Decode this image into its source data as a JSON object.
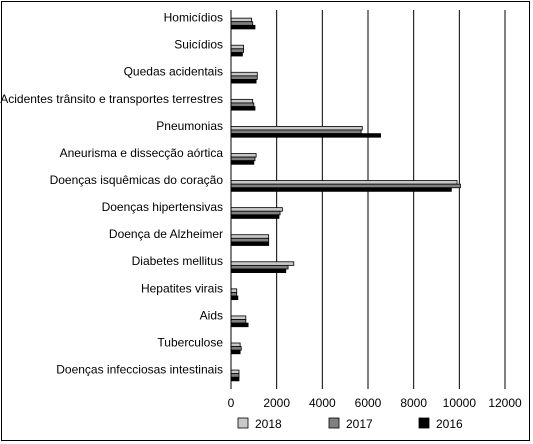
{
  "chart_data": {
    "type": "bar",
    "orientation": "horizontal",
    "categories": [
      "Homicídios",
      "Suicídios",
      "Quedas acidentais",
      "Acidentes trânsito e transportes terrestres",
      "Pneumonias",
      "Aneurisma e dissecção aórtica",
      "Doenças isquêmicas do coração",
      "Doenças hipertensivas",
      "Doença de Alzheimer",
      "Diabetes mellitus",
      "Hepatites virais",
      "Aids",
      "Tuberculose",
      "Doenças infecciosas intestinais"
    ],
    "series": [
      {
        "name": "2018",
        "color": "#c8c8c8",
        "values": [
          900,
          550,
          1150,
          950,
          5750,
          1100,
          9900,
          2250,
          1650,
          2750,
          250,
          650,
          400,
          350
        ]
      },
      {
        "name": "2017",
        "color": "#808080",
        "values": [
          950,
          550,
          1150,
          1000,
          5700,
          1050,
          10050,
          2150,
          1650,
          2500,
          250,
          650,
          450,
          350
        ]
      },
      {
        "name": "2016",
        "color": "#000000",
        "values": [
          1050,
          500,
          1100,
          1050,
          6550,
          1000,
          9650,
          2100,
          1650,
          2400,
          300,
          750,
          400,
          350
        ]
      }
    ],
    "xlim": [
      0,
      12000
    ],
    "xticks": [
      "0",
      "2000",
      "4000",
      "6000",
      "8000",
      "10000",
      "12000"
    ],
    "grid": "vertical",
    "legend": "bottom"
  }
}
